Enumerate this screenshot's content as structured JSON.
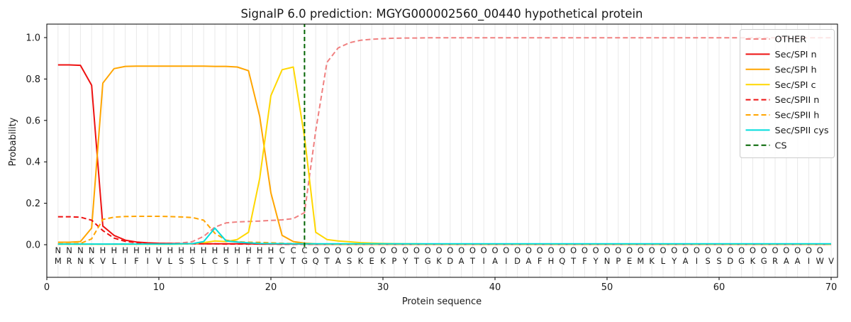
{
  "title": "SignalP 6.0 prediction: MGYG000002560_00440 hypothetical protein",
  "axes": {
    "xlabel": "Protein sequence",
    "ylabel": "Probability",
    "xticks": [
      0,
      10,
      20,
      30,
      40,
      50,
      60,
      70
    ],
    "yticks": [
      "0.0",
      "0.2",
      "0.4",
      "0.6",
      "0.8",
      "1.0"
    ]
  },
  "sequence": {
    "residues": "MRNKVLIFIVLSSLCSIFTTVTGQTASKEKPYTGKDATIAIDAFHQTFYNPEMKLYAISSDGKGRAAIWV",
    "region_labels": "NNNNHHHHHHHHHHHHHHHHCCCOOOOOOOOOOOOOOOOOOOOOOOOOOOOOOOOOOOOOOOOOOOOOO",
    "label_colors": {
      "N": "#ee1111",
      "H": "#ffa500",
      "C": "#f0c400",
      "O": "#808080"
    },
    "residue_color": "#1a1a1a"
  },
  "legend": {
    "position": "upper right",
    "entries": [
      {
        "label": "OTHER",
        "color": "#f08080",
        "style": "dashed"
      },
      {
        "label": "Sec/SPI n",
        "color": "#ee1111",
        "style": "solid"
      },
      {
        "label": "Sec/SPI h",
        "color": "#ffa500",
        "style": "solid"
      },
      {
        "label": "Sec/SPI c",
        "color": "#ffd700",
        "style": "solid"
      },
      {
        "label": "Sec/SPII n",
        "color": "#ee1111",
        "style": "dashed"
      },
      {
        "label": "Sec/SPII h",
        "color": "#ffa500",
        "style": "dashed"
      },
      {
        "label": "Sec/SPII cys",
        "color": "#00dddd",
        "style": "solid"
      },
      {
        "label": "CS",
        "color": "#006400",
        "style": "dashed"
      }
    ]
  },
  "chart_data": {
    "type": "line",
    "x_start_position": 1,
    "x_end_position": 70,
    "xlim": [
      0,
      70.6
    ],
    "ylim": [
      -0.16,
      1.07
    ],
    "grid": "vertical line per residue position",
    "cs_position": 23,
    "cs_color": "#006400",
    "series": [
      {
        "name": "OTHER",
        "color": "#f08080",
        "style": "dashed",
        "values": [
          0.002,
          0.002,
          0.002,
          0.002,
          0.002,
          0.003,
          0.003,
          0.004,
          0.004,
          0.005,
          0.006,
          0.008,
          0.015,
          0.04,
          0.085,
          0.105,
          0.11,
          0.112,
          0.114,
          0.117,
          0.12,
          0.126,
          0.155,
          0.55,
          0.88,
          0.95,
          0.975,
          0.987,
          0.992,
          0.995,
          0.997,
          0.998,
          0.998,
          0.999,
          0.999,
          0.999,
          0.999,
          0.999,
          0.999,
          0.999,
          0.999,
          0.999,
          0.999,
          0.999,
          0.999,
          0.999,
          0.999,
          0.999,
          0.999,
          0.999,
          0.999,
          0.999,
          0.999,
          0.999,
          0.999,
          0.999,
          0.999,
          0.999,
          0.999,
          0.999,
          0.999,
          0.999,
          0.999,
          0.999,
          0.999,
          0.999,
          0.999,
          0.999,
          0.999,
          0.999
        ]
      },
      {
        "name": "Sec/SPI n",
        "color": "#ee1111",
        "style": "solid",
        "values": [
          0.868,
          0.868,
          0.866,
          0.77,
          0.09,
          0.045,
          0.022,
          0.013,
          0.009,
          0.007,
          0.006,
          0.005,
          0.005,
          0.004,
          0.004,
          0.004,
          0.004,
          0.004,
          0.003,
          0.003,
          0.003,
          0.003,
          0.003,
          0.002,
          0.002,
          0.002,
          0.002,
          0.002,
          0.002,
          0.002,
          0.002,
          0.002,
          0.002,
          0.002,
          0.002,
          0.002,
          0.002,
          0.002,
          0.002,
          0.002,
          0.002,
          0.002,
          0.002,
          0.002,
          0.002,
          0.002,
          0.002,
          0.002,
          0.002,
          0.002,
          0.002,
          0.002,
          0.002,
          0.002,
          0.002,
          0.002,
          0.002,
          0.002,
          0.002,
          0.002,
          0.002,
          0.002,
          0.002,
          0.002,
          0.002,
          0.002,
          0.002,
          0.002,
          0.002,
          0.002
        ]
      },
      {
        "name": "Sec/SPI h",
        "color": "#ffa500",
        "style": "solid",
        "values": [
          0.012,
          0.012,
          0.015,
          0.08,
          0.78,
          0.85,
          0.861,
          0.862,
          0.862,
          0.862,
          0.862,
          0.862,
          0.862,
          0.862,
          0.861,
          0.861,
          0.858,
          0.84,
          0.62,
          0.25,
          0.045,
          0.015,
          0.008,
          0.004,
          0.003,
          0.002,
          0.002,
          0.002,
          0.002,
          0.002,
          0.002,
          0.002,
          0.002,
          0.002,
          0.002,
          0.002,
          0.002,
          0.002,
          0.002,
          0.002,
          0.002,
          0.002,
          0.002,
          0.002,
          0.002,
          0.002,
          0.002,
          0.002,
          0.002,
          0.002,
          0.002,
          0.002,
          0.002,
          0.002,
          0.002,
          0.002,
          0.002,
          0.002,
          0.002,
          0.002,
          0.002,
          0.002,
          0.002,
          0.002,
          0.002,
          0.002,
          0.002,
          0.002,
          0.002,
          0.002
        ]
      },
      {
        "name": "Sec/SPI c",
        "color": "#ffd700",
        "style": "solid",
        "values": [
          0.002,
          0.002,
          0.002,
          0.002,
          0.002,
          0.002,
          0.002,
          0.002,
          0.002,
          0.002,
          0.002,
          0.003,
          0.004,
          0.01,
          0.018,
          0.015,
          0.025,
          0.06,
          0.32,
          0.72,
          0.845,
          0.858,
          0.52,
          0.06,
          0.025,
          0.018,
          0.014,
          0.01,
          0.008,
          0.006,
          0.005,
          0.004,
          0.004,
          0.003,
          0.003,
          0.003,
          0.003,
          0.003,
          0.003,
          0.003,
          0.003,
          0.003,
          0.003,
          0.003,
          0.003,
          0.003,
          0.003,
          0.003,
          0.003,
          0.003,
          0.003,
          0.003,
          0.003,
          0.003,
          0.003,
          0.003,
          0.003,
          0.003,
          0.003,
          0.003,
          0.003,
          0.003,
          0.003,
          0.003,
          0.003,
          0.003,
          0.003,
          0.003,
          0.003,
          0.003
        ]
      },
      {
        "name": "Sec/SPII n",
        "color": "#ee1111",
        "style": "dashed",
        "values": [
          0.135,
          0.135,
          0.133,
          0.118,
          0.068,
          0.032,
          0.016,
          0.01,
          0.007,
          0.006,
          0.005,
          0.005,
          0.004,
          0.004,
          0.004,
          0.003,
          0.003,
          0.003,
          0.003,
          0.003,
          0.002,
          0.002,
          0.002,
          0.002,
          0.002,
          0.002,
          0.002,
          0.002,
          0.002,
          0.002,
          0.002,
          0.002,
          0.002,
          0.002,
          0.002,
          0.002,
          0.002,
          0.002,
          0.002,
          0.002,
          0.002,
          0.002,
          0.002,
          0.002,
          0.002,
          0.002,
          0.002,
          0.002,
          0.002,
          0.002,
          0.002,
          0.002,
          0.002,
          0.002,
          0.002,
          0.002,
          0.002,
          0.002,
          0.002,
          0.002,
          0.002,
          0.002,
          0.002,
          0.002,
          0.002,
          0.002,
          0.002,
          0.002,
          0.002,
          0.002
        ]
      },
      {
        "name": "Sec/SPII h",
        "color": "#ffa500",
        "style": "dashed",
        "values": [
          0.004,
          0.004,
          0.006,
          0.028,
          0.122,
          0.133,
          0.136,
          0.137,
          0.137,
          0.137,
          0.136,
          0.134,
          0.131,
          0.118,
          0.055,
          0.022,
          0.014,
          0.012,
          0.011,
          0.009,
          0.007,
          0.005,
          0.004,
          0.003,
          0.002,
          0.002,
          0.002,
          0.002,
          0.002,
          0.002,
          0.002,
          0.002,
          0.002,
          0.002,
          0.002,
          0.002,
          0.002,
          0.002,
          0.002,
          0.002,
          0.002,
          0.002,
          0.002,
          0.002,
          0.002,
          0.002,
          0.002,
          0.002,
          0.002,
          0.002,
          0.002,
          0.002,
          0.002,
          0.002,
          0.002,
          0.002,
          0.002,
          0.002,
          0.002,
          0.002,
          0.002,
          0.002,
          0.002,
          0.002,
          0.002,
          0.002,
          0.002,
          0.002,
          0.002,
          0.002
        ]
      },
      {
        "name": "Sec/SPII cys",
        "color": "#00dddd",
        "style": "solid",
        "values": [
          0.003,
          0.003,
          0.003,
          0.003,
          0.003,
          0.003,
          0.003,
          0.003,
          0.003,
          0.003,
          0.003,
          0.004,
          0.005,
          0.015,
          0.08,
          0.018,
          0.013,
          0.009,
          0.006,
          0.005,
          0.005,
          0.004,
          0.004,
          0.004,
          0.004,
          0.004,
          0.004,
          0.004,
          0.004,
          0.004,
          0.004,
          0.004,
          0.004,
          0.004,
          0.004,
          0.004,
          0.004,
          0.004,
          0.004,
          0.004,
          0.004,
          0.004,
          0.004,
          0.004,
          0.004,
          0.004,
          0.004,
          0.004,
          0.004,
          0.004,
          0.004,
          0.004,
          0.004,
          0.004,
          0.004,
          0.004,
          0.004,
          0.004,
          0.004,
          0.004,
          0.004,
          0.004,
          0.004,
          0.004,
          0.004,
          0.004,
          0.004,
          0.004,
          0.004,
          0.004
        ]
      }
    ]
  }
}
